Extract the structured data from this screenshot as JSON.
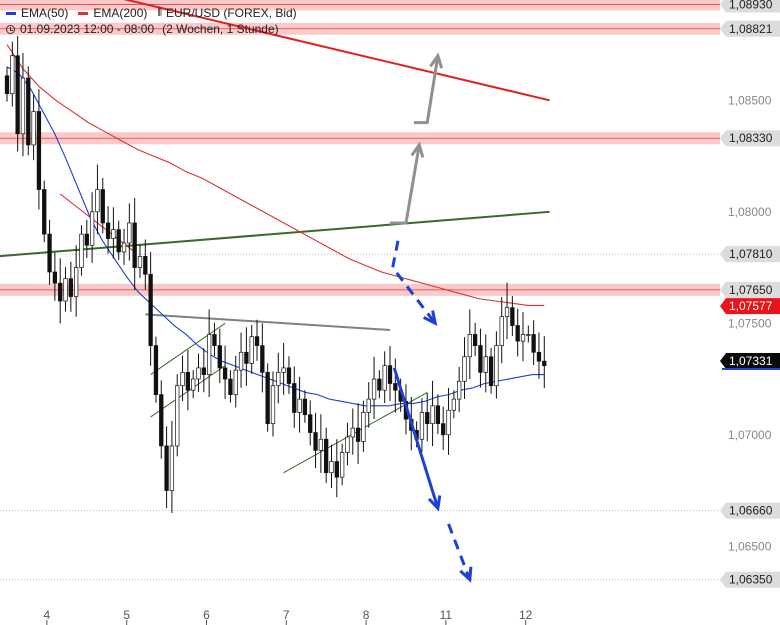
{
  "legend": {
    "ema50": {
      "label": "EMA(50)",
      "color": "#1f3fd6"
    },
    "ema200": {
      "label": "EMA(200)",
      "color": "#e03030"
    },
    "instrument_icon": "candlestick-icon",
    "instrument": "EUR/USD (FOREX, Bid)",
    "clock_icon": "clock-icon",
    "period": "01.09.2023 12:00 - 08:00",
    "range": "(2 Wochen, 1 Stunde)"
  },
  "chart_data": {
    "type": "candlestick",
    "title": "",
    "xlabel": "",
    "ylabel": "",
    "ylim": [
      1.0625,
      1.0895
    ],
    "x_range": [
      0,
      97
    ],
    "grid": false,
    "x_ticks": [
      {
        "label": "4",
        "x": 7.5
      },
      {
        "label": "5",
        "x": 22.5
      },
      {
        "label": "6",
        "x": 37.5
      },
      {
        "label": "7",
        "x": 52.5
      },
      {
        "label": "8",
        "x": 67.5
      },
      {
        "label": "11",
        "x": 82.5
      },
      {
        "label": "12",
        "x": 97.5
      }
    ],
    "y_ticks": [
      {
        "label": "1,08500",
        "value": 1.085
      },
      {
        "label": "1,08000",
        "value": 1.08
      },
      {
        "label": "1,07500",
        "value": 1.075
      },
      {
        "label": "1,07000",
        "value": 1.07
      },
      {
        "label": "1,06500",
        "value": 1.065
      }
    ],
    "price_markers": [
      {
        "label": "1,08930",
        "value": 1.0893,
        "style": "zone"
      },
      {
        "label": "1,08821",
        "value": 1.08821,
        "style": "zone"
      },
      {
        "label": "1,08330",
        "value": 1.0833,
        "style": "zone"
      },
      {
        "label": "1,07810",
        "value": 1.0781,
        "style": "line"
      },
      {
        "label": "1,07650",
        "value": 1.0765,
        "style": "zone"
      },
      {
        "label": "1,07577",
        "value": 1.07577,
        "style": "ema200"
      },
      {
        "label": "1,07331",
        "value": 1.07331,
        "style": "current"
      },
      {
        "label": "1,06660",
        "value": 1.0666,
        "style": "line"
      },
      {
        "label": "1,06350",
        "value": 1.0635,
        "style": "line"
      }
    ],
    "close": [
      1.0853,
      1.087,
      1.0835,
      1.086,
      1.083,
      1.0845,
      1.081,
      1.079,
      1.0773,
      1.0768,
      1.076,
      1.077,
      1.0762,
      1.0775,
      1.079,
      1.0785,
      1.08,
      1.081,
      1.0795,
      1.0788,
      1.0792,
      1.0782,
      1.0786,
      1.0795,
      1.0775,
      1.078,
      1.0772,
      1.074,
      1.0718,
      1.0695,
      1.0675,
      1.0695,
      1.0722,
      1.0728,
      1.072,
      1.0725,
      1.073,
      1.0727,
      1.0745,
      1.074,
      1.073,
      1.0725,
      1.0718,
      1.0729,
      1.0737,
      1.0732,
      1.0744,
      1.074,
      1.0728,
      1.0705,
      1.0722,
      1.0728,
      1.073,
      1.0723,
      1.071,
      1.0716,
      1.0709,
      1.0701,
      1.0693,
      1.0698,
      1.0683,
      1.0688,
      1.0681,
      1.0692,
      1.0699,
      1.0703,
      1.0697,
      1.071,
      1.0716,
      1.0725,
      1.072,
      1.0731,
      1.0723,
      1.072,
      1.0715,
      1.0707,
      1.0702,
      1.0698,
      1.071,
      1.0705,
      1.0713,
      1.0705,
      1.07,
      1.0711,
      1.0716,
      1.0724,
      1.0735,
      1.0745,
      1.074,
      1.0728,
      1.0735,
      1.0722,
      1.074,
      1.0753,
      1.0757,
      1.0749,
      1.0742,
      1.0745,
      1.0745,
      1.0737,
      1.0733,
      1.0731
    ],
    "ema50": [
      1.0865,
      1.0862,
      1.0855,
      1.0845,
      1.0835,
      1.0823,
      1.081,
      1.0797,
      1.0787,
      1.0779,
      1.0771,
      1.0764,
      1.0759,
      1.0754,
      1.0749,
      1.0745,
      1.074,
      1.0736,
      1.0733,
      1.0731,
      1.0729,
      1.0727,
      1.0725,
      1.0723,
      1.0721,
      1.0719,
      1.0718,
      1.0716,
      1.0715,
      1.0714,
      1.0713,
      1.0713,
      1.0713,
      1.0714,
      1.0714,
      1.0715,
      1.0717,
      1.0718,
      1.072,
      1.0721,
      1.0723,
      1.0724,
      1.0725,
      1.0726,
      1.0727,
      1.0727
    ],
    "ema200": [
      1.0875,
      1.0864,
      1.0856,
      1.085,
      1.0845,
      1.084,
      1.0836,
      1.0832,
      1.0828,
      1.0825,
      1.0822,
      1.0818,
      1.0815,
      1.0811,
      1.0807,
      1.0803,
      1.0799,
      1.0795,
      1.0791,
      1.0787,
      1.0783,
      1.0779,
      1.0776,
      1.0773,
      1.0771,
      1.0769,
      1.0767,
      1.0765,
      1.0763,
      1.0761,
      1.076,
      1.0759,
      1.0758,
      1.0758
    ],
    "trendlines": [
      {
        "name": "resistance-red",
        "color": "#e02020",
        "from": [
          -2,
          1.0909
        ],
        "to": [
          102,
          1.085
        ]
      },
      {
        "name": "support-green-long",
        "color": "#3a6a2a",
        "from": [
          -2,
          1.078
        ],
        "to": [
          102,
          1.08
        ]
      },
      {
        "name": "neckline-gray",
        "color": "#808080",
        "from": [
          26,
          1.0754
        ],
        "to": [
          72,
          1.0747
        ]
      },
      {
        "name": "channel-lower-green",
        "color": "#3a6a2a",
        "from": [
          52,
          1.0683
        ],
        "to": [
          79,
          1.0719
        ]
      },
      {
        "name": "small-up-green",
        "color": "#3a6a2a",
        "from": [
          27,
          1.0708
        ],
        "to": [
          41,
          1.0731
        ]
      },
      {
        "name": "small-up-green-2",
        "color": "#3a6a2a",
        "from": [
          27,
          1.0727
        ],
        "to": [
          41,
          1.075
        ]
      },
      {
        "name": "short-red-down",
        "color": "#e02020",
        "from": [
          10,
          1.0808
        ],
        "to": [
          24,
          1.0782
        ]
      }
    ],
    "scenarios": [
      {
        "name": "bull-path",
        "color": "#909090",
        "dashed": false,
        "points": [
          [
            72,
            1.0795
          ],
          [
            75,
            1.0795
          ],
          [
            77.5,
            1.083
          ]
        ]
      },
      {
        "name": "bull-path-2",
        "color": "#909090",
        "dashed": false,
        "points": [
          [
            76.5,
            1.084
          ],
          [
            79,
            1.084
          ],
          [
            81,
            1.087
          ]
        ]
      },
      {
        "name": "bear-correction",
        "color": "#1f3fd6",
        "dashed": true,
        "points": [
          [
            73.5,
            1.0787
          ],
          [
            72.5,
            1.0775
          ],
          [
            80.5,
            1.075
          ]
        ]
      },
      {
        "name": "bear-main",
        "color": "#1f3fd6",
        "dashed": false,
        "points": [
          [
            72.8,
            1.073
          ],
          [
            81,
            1.0667
          ]
        ]
      },
      {
        "name": "bear-extension",
        "color": "#1f3fd6",
        "dashed": true,
        "points": [
          [
            83,
            1.066
          ],
          [
            87,
            1.0635
          ]
        ]
      }
    ]
  }
}
